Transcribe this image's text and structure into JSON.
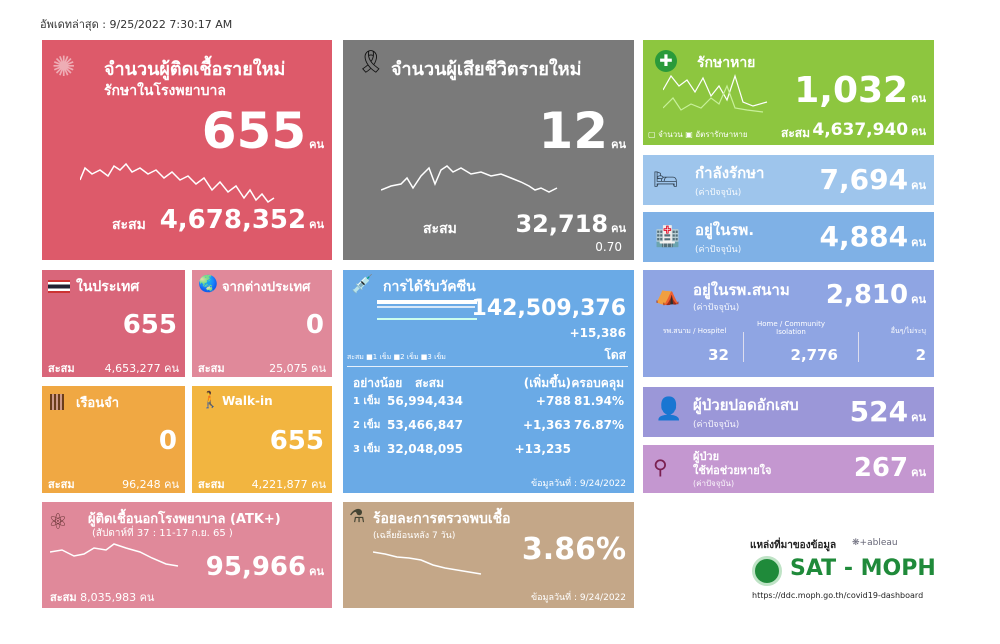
{
  "updated": "อัพเดทล่าสุด : 9/25/2022 7:30:17 AM",
  "unit": "คน",
  "cum": "สะสม",
  "new_cases": {
    "title": "จำนวนผู้ติดเชื้อรายใหม่",
    "subtitle": "รักษาในโรงพยาบาล",
    "value": "655",
    "cumulative": "4,678,352",
    "color": "#dd5a6a"
  },
  "deaths": {
    "title": "จำนวนผู้เสียชีวิตรายใหม่",
    "value": "12",
    "cumulative": "32,718",
    "rate": "0.70",
    "color": "#7a7a7a"
  },
  "recovered": {
    "title": "รักษาหาย",
    "value": "1,032",
    "cumulative": "4,637,940",
    "legend": [
      "จำนวน",
      "อัตรารักษาหาย"
    ],
    "color": "#8dc63f"
  },
  "treating": {
    "title": "กำลังรักษา",
    "note": "(ค่าปัจจุบัน)",
    "value": "7,694"
  },
  "hospital": {
    "title": "อยู่ในรพ.",
    "note": "(ค่าปัจจุบัน)",
    "value": "4,884"
  },
  "field": {
    "title": "อยู่ในรพ.สนาม",
    "note": "(ค่าปัจจุบัน)",
    "value": "2,810",
    "cols": [
      {
        "label": "รพ.สนาม / Hospitel",
        "value": "32"
      },
      {
        "label": "Home / Community Isolation",
        "value": "2,776"
      },
      {
        "label": "อื่นๆ/ไม่ระบุ",
        "value": "2"
      }
    ]
  },
  "pneumonia": {
    "title": "ผู้ป่วยปอดอักเสบ",
    "note": "(ค่าปัจจุบัน)",
    "value": "524"
  },
  "ventilator": {
    "title1": "ผู้ป่วย",
    "title2": "ใช้ท่อช่วยหายใจ",
    "note": "(ค่าปัจจุบัน)",
    "value": "267"
  },
  "domestic": {
    "title": "ในประเทศ",
    "value": "655",
    "cumulative": "4,653,277"
  },
  "imported": {
    "title": "จากต่างประเทศ",
    "value": "0",
    "cumulative": "25,075"
  },
  "prison": {
    "title": "เรือนจำ",
    "value": "0",
    "cumulative": "96,248"
  },
  "walkin": {
    "title": "Walk-in",
    "value": "655",
    "cumulative": "4,221,877"
  },
  "atk": {
    "title": "ผู้ติดเชื้อนอกโรงพยาบาล (ATK+)",
    "week": "(สัปดาห์ที่ 37 : 11-17 ก.ย. 65     )",
    "value": "95,966",
    "cumulative": "8,035,983"
  },
  "vaccine": {
    "title": "การได้รับวัคซีน",
    "total": "142,509,376",
    "delta": "+15,386",
    "dose_unit": "โดส",
    "legend": [
      "สะสม",
      "1 เข็ม",
      "2 เข็ม",
      "3 เข็ม"
    ],
    "headers": [
      "อย่างน้อย",
      "สะสม",
      "(เพิ่มขึ้น)",
      "ครอบคลุม"
    ],
    "rows": [
      [
        "1 เข็ม",
        "56,994,434",
        "+788",
        "81.94%"
      ],
      [
        "2 เข็ม",
        "53,466,847",
        "+1,363",
        "76.87%"
      ],
      [
        "3 เข็ม",
        "32,048,095",
        "+13,235",
        ""
      ]
    ],
    "date": "ข้อมูลวันที่ : 9/24/2022"
  },
  "positive": {
    "title": "ร้อยละการตรวจพบเชื้อ",
    "sub": "(เฉลี่ยย้อนหลัง 7 วัน)",
    "value": "3.86%",
    "date": "ข้อมูลวันที่ : 9/24/2022"
  },
  "source": {
    "label": "แหล่งที่มาของข้อมูล",
    "tableau": "+ableau",
    "brand": "SAT - MOPH",
    "url": "https://ddc.moph.go.th/covid19-dashboard"
  }
}
